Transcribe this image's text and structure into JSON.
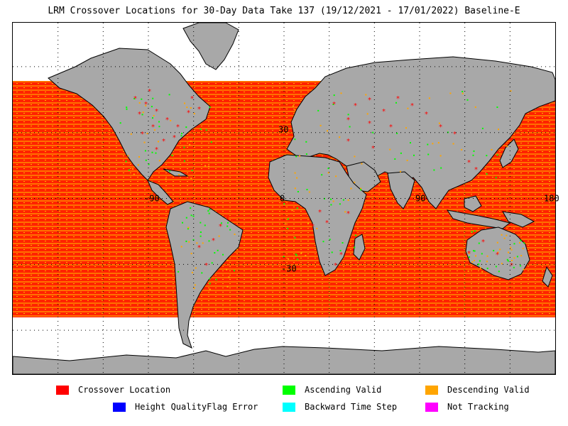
{
  "title": "LRM Crossover Locations for 30-Day Data Take 137 (19/12/2021 - 17/01/2022) Baseline-E",
  "map": {
    "projection": "equirectangular",
    "lat_labels": [
      {
        "text": "30",
        "value": 30
      },
      {
        "text": "-30",
        "value": -30
      }
    ],
    "lon_labels": [
      {
        "text": "-90",
        "value": -90
      },
      {
        "text": "0",
        "value": 0
      },
      {
        "text": "90",
        "value": 90
      },
      {
        "text": "180",
        "value": 180
      }
    ],
    "colors": {
      "land": "#a8a8a8",
      "ice": "#ffffff",
      "ocean_track": "#ff2200",
      "ascending": "#00ff00",
      "descending": "#ffa500"
    }
  },
  "legend": {
    "items": [
      {
        "label": "Crossover Location",
        "color": "#ff0000"
      },
      {
        "label": "Ascending Valid",
        "color": "#00ff00"
      },
      {
        "label": "Descending Valid",
        "color": "#ffa500"
      },
      {
        "label": "Height QualityFlag Error",
        "color": "#0000ff"
      },
      {
        "label": "Backward Time Step",
        "color": "#00ffff"
      },
      {
        "label": "Not Tracking",
        "color": "#ff00ff"
      }
    ]
  }
}
